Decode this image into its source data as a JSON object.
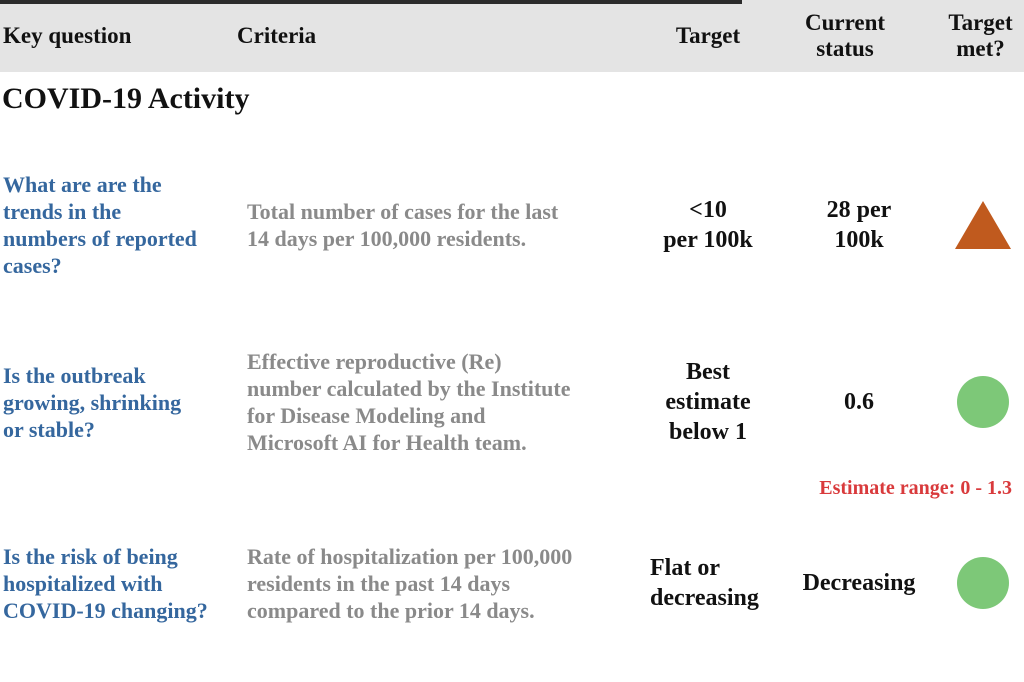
{
  "header": {
    "key_question": "Key question",
    "criteria": "Criteria",
    "target": "Target",
    "current_status": "Current\nstatus",
    "target_met": "Target\nmet?"
  },
  "section_title": "COVID-19 Activity",
  "rows": [
    {
      "question": "What are are the\ntrends in the\nnumbers of reported\ncases?",
      "criteria": "Total number of cases for the last\n14 days per 100,000 residents.",
      "target": "<10\nper 100k",
      "current_status": "28 per\n100k",
      "indicator": {
        "shape": "triangle-up",
        "color": "#c05a1e"
      }
    },
    {
      "question": "Is the outbreak\ngrowing, shrinking\nor stable?",
      "criteria": "Effective reproductive (Re)\nnumber calculated by the Institute\nfor Disease Modeling and\nMicrosoft AI for Health team.",
      "target": "Best\nestimate\nbelow 1",
      "current_status": "0.6",
      "indicator": {
        "shape": "circle",
        "color": "#7dc878"
      },
      "note": "Estimate range: 0 - 1.3"
    },
    {
      "question": "Is the risk of being\nhospitalized with\nCOVID-19 changing?",
      "criteria": "Rate of hospitalization per 100,000\nresidents in the past 14 days\ncompared to the prior 14 days.",
      "target": "Flat or\ndecreasing",
      "current_status": "Decreasing",
      "indicator": {
        "shape": "circle",
        "color": "#7dc878"
      }
    }
  ],
  "colors": {
    "header_bg": "#e4e4e4",
    "question_blue": "#35679e",
    "criteria_gray": "#8a8a8a",
    "note_red": "#d93a3c",
    "triangle_orange": "#c05a1e",
    "circle_green": "#7dc878"
  }
}
